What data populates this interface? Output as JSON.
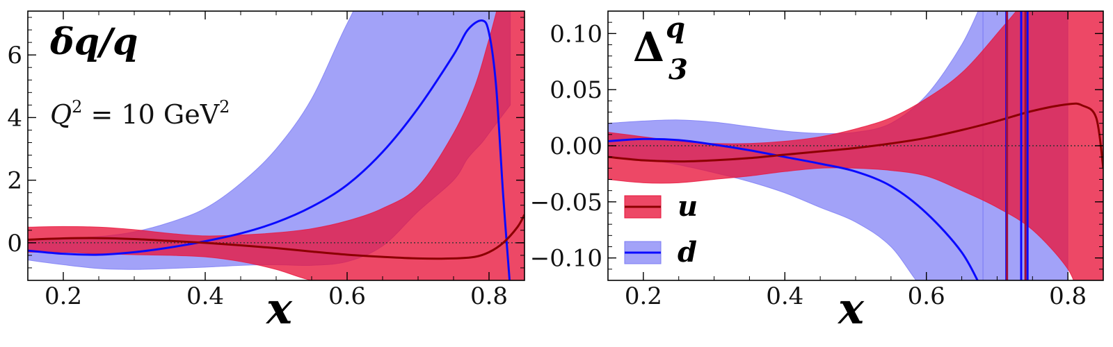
{
  "colors": {
    "u_band": "#e8143b",
    "u_band_alpha": 0.78,
    "u_line": "#8b0000",
    "d_band": "#7b7bf5",
    "d_band_alpha": 0.7,
    "d_line": "#0a0aff"
  },
  "legend": {
    "placement": "center-left of right panel",
    "entries": [
      {
        "key": "u",
        "label": "u"
      },
      {
        "key": "d",
        "label": "d"
      }
    ]
  },
  "chart_data": [
    {
      "type": "line",
      "title_main": "δq/q",
      "annotation_main": "Q",
      "annotation_sup": "2",
      "annotation_rest": " = 10 GeV",
      "annotation_sup2": "2",
      "xlabel": "x",
      "ylabel": "",
      "xlim": [
        0.15,
        0.85
      ],
      "ylim": [
        -1.2,
        7.4
      ],
      "xticks": [
        0.2,
        0.4,
        0.6,
        0.8
      ],
      "xtick_labels": [
        "0.2",
        "0.4",
        "0.6",
        "0.8"
      ],
      "yticks": [
        0,
        2,
        4,
        6
      ],
      "ytick_labels": [
        "0",
        "2",
        "4",
        "6"
      ],
      "zero_line": true,
      "series": [
        {
          "key": "u",
          "x": [
            0.15,
            0.2,
            0.25,
            0.3,
            0.35,
            0.4,
            0.45,
            0.5,
            0.55,
            0.6,
            0.65,
            0.7,
            0.75,
            0.78,
            0.8,
            0.82,
            0.84,
            0.85
          ],
          "center": [
            0.1,
            0.14,
            0.15,
            0.12,
            0.06,
            0.0,
            -0.08,
            -0.17,
            -0.28,
            -0.38,
            -0.45,
            -0.5,
            -0.5,
            -0.45,
            -0.3,
            0.0,
            0.5,
            0.9
          ],
          "upper": [
            0.5,
            0.52,
            0.5,
            0.42,
            0.3,
            0.22,
            0.25,
            0.32,
            0.45,
            0.7,
            1.1,
            1.8,
            3.5,
            5.0,
            6.5,
            8.0,
            8.0,
            8.0
          ],
          "lower": [
            -0.3,
            -0.3,
            -0.35,
            -0.38,
            -0.4,
            -0.45,
            -0.6,
            -0.85,
            -1.2,
            -1.3,
            -1.3,
            -1.3,
            -1.3,
            -1.3,
            -1.3,
            -1.3,
            -1.3,
            -1.3
          ]
        },
        {
          "key": "d",
          "x": [
            0.15,
            0.2,
            0.25,
            0.3,
            0.35,
            0.4,
            0.45,
            0.5,
            0.55,
            0.6,
            0.65,
            0.7,
            0.75,
            0.77,
            0.79,
            0.8,
            0.81,
            0.82,
            0.83
          ],
          "center": [
            -0.25,
            -0.35,
            -0.38,
            -0.3,
            -0.15,
            0.05,
            0.3,
            0.65,
            1.15,
            1.85,
            2.9,
            4.3,
            6.0,
            6.8,
            7.1,
            6.7,
            5.0,
            1.5,
            -1.5
          ],
          "upper": [
            0.1,
            0.15,
            0.2,
            0.35,
            0.65,
            1.1,
            1.9,
            3.0,
            4.6,
            7.0,
            9.0,
            9.0,
            9.0,
            9.0,
            9.0,
            9.0,
            9.0,
            9.0,
            9.0
          ],
          "lower": [
            -0.55,
            -0.7,
            -0.82,
            -0.85,
            -0.82,
            -0.78,
            -0.72,
            -0.7,
            -0.72,
            -0.6,
            -0.1,
            1.0,
            2.0,
            2.7,
            3.2,
            3.5,
            3.8,
            4.1,
            4.4
          ]
        }
      ]
    },
    {
      "type": "line",
      "title_main": "Δ",
      "title_sup": "q",
      "title_sub": "3",
      "xlabel": "x",
      "ylabel": "",
      "xlim": [
        0.15,
        0.85
      ],
      "ylim": [
        -0.12,
        0.12
      ],
      "xticks": [
        0.2,
        0.4,
        0.6,
        0.8
      ],
      "xtick_labels": [
        "0.2",
        "0.4",
        "0.6",
        "0.8"
      ],
      "yticks": [
        -0.1,
        -0.05,
        0.0,
        0.05,
        0.1
      ],
      "ytick_labels": [
        "−0.10",
        "−0.05",
        "0.00",
        "0.05",
        "0.10"
      ],
      "zero_line": true,
      "series": [
        {
          "key": "u",
          "x": [
            0.15,
            0.2,
            0.25,
            0.3,
            0.35,
            0.4,
            0.45,
            0.5,
            0.55,
            0.6,
            0.65,
            0.7,
            0.75,
            0.8,
            0.82,
            0.84,
            0.85
          ],
          "center": [
            -0.01,
            -0.013,
            -0.014,
            -0.013,
            -0.011,
            -0.008,
            -0.005,
            -0.002,
            0.002,
            0.007,
            0.014,
            0.022,
            0.031,
            0.037,
            0.036,
            0.025,
            -0.02
          ],
          "upper": [
            0.012,
            0.008,
            0.004,
            0.002,
            0.002,
            0.004,
            0.008,
            0.015,
            0.025,
            0.042,
            0.065,
            0.1,
            0.14,
            0.2,
            0.2,
            0.2,
            0.2
          ],
          "lower": [
            -0.03,
            -0.033,
            -0.033,
            -0.03,
            -0.027,
            -0.023,
            -0.02,
            -0.02,
            -0.022,
            -0.027,
            -0.04,
            -0.055,
            -0.075,
            -0.11,
            -0.14,
            -0.14,
            -0.14
          ]
        },
        {
          "key": "d",
          "x": [
            0.15,
            0.2,
            0.25,
            0.3,
            0.35,
            0.4,
            0.45,
            0.5,
            0.55,
            0.6,
            0.65,
            0.68
          ],
          "center": [
            0.004,
            0.006,
            0.005,
            0.001,
            -0.004,
            -0.01,
            -0.016,
            -0.023,
            -0.036,
            -0.06,
            -0.095,
            -0.13
          ],
          "upper": [
            0.02,
            0.022,
            0.023,
            0.021,
            0.017,
            0.013,
            0.011,
            0.012,
            0.02,
            0.045,
            0.09,
            0.13
          ],
          "lower": [
            -0.01,
            -0.012,
            -0.017,
            -0.024,
            -0.032,
            -0.042,
            -0.055,
            -0.068,
            -0.09,
            -0.13,
            -0.14,
            -0.14
          ]
        },
        {
          "key": "d_band_tail",
          "x": [
            0.68,
            0.7,
            0.72,
            0.75,
            0.78,
            0.8
          ],
          "upper": [
            0.13,
            0.14,
            0.14,
            0.14,
            0.14,
            0.14
          ],
          "lower": [
            -0.14,
            -0.14,
            -0.14,
            -0.14,
            -0.14,
            -0.12
          ]
        }
      ],
      "d_poles": [
        0.713,
        0.734,
        0.743
      ],
      "u_poles": [
        0.714,
        0.74
      ]
    }
  ]
}
